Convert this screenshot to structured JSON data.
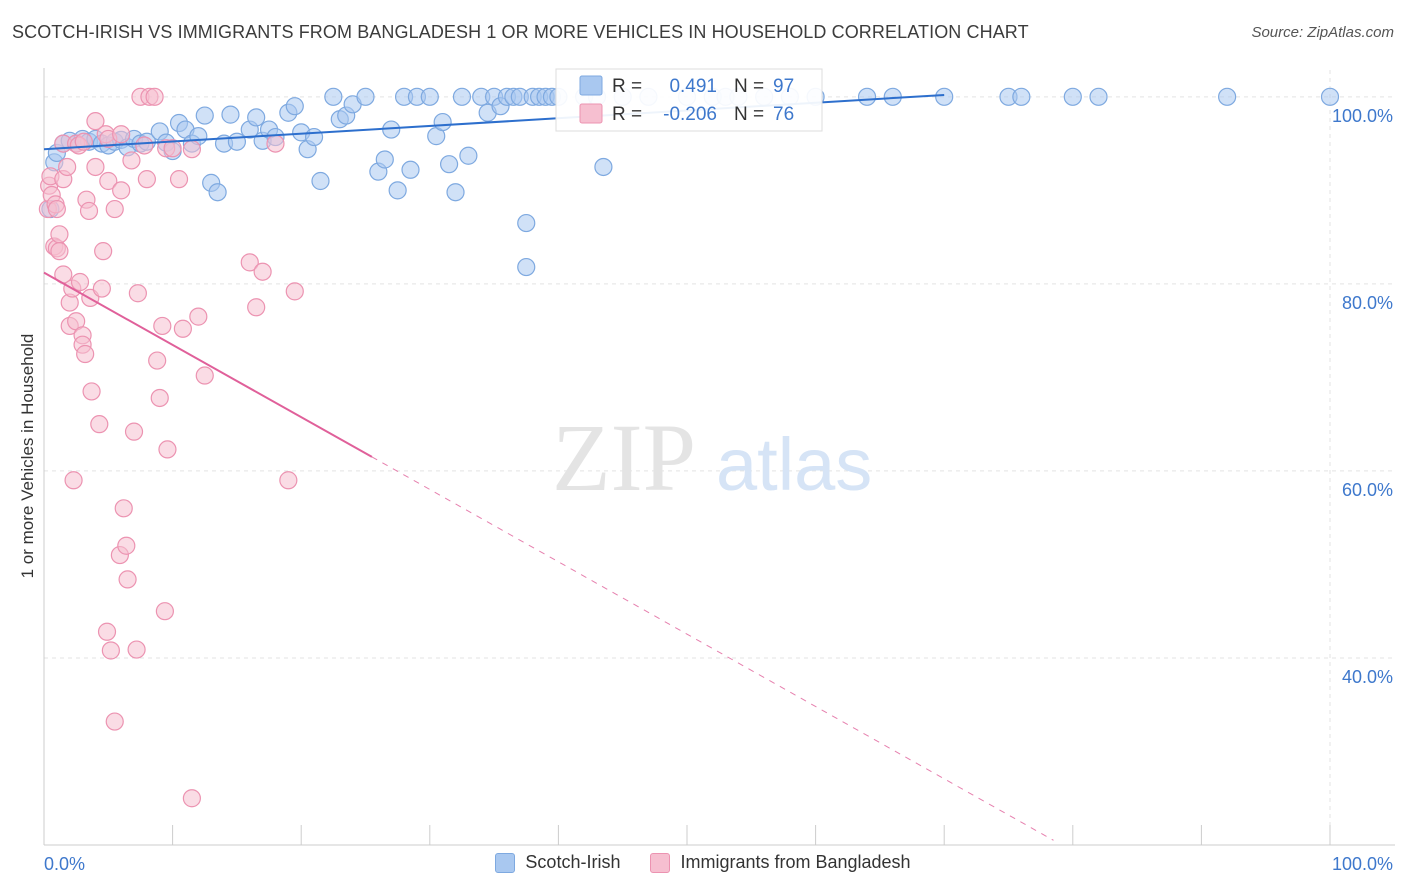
{
  "title": "SCOTCH-IRISH VS IMMIGRANTS FROM BANGLADESH 1 OR MORE VEHICLES IN HOUSEHOLD CORRELATION CHART",
  "source": "Source: ZipAtlas.com",
  "watermark": {
    "zip": "ZIP",
    "atlas": "atlas"
  },
  "colors": {
    "blue_fill": "#a9c8f0",
    "blue_stroke": "#7ea9e0",
    "blue_line": "#2d6fcd",
    "pink_fill": "#f6bfd0",
    "pink_stroke": "#ec93b1",
    "pink_line": "#e0609a",
    "grid": "#e3e3e3",
    "axis_text": "#3e78cc"
  },
  "legend_box": {
    "rows": [
      {
        "r_label": "R =",
        "r_value": "0.491",
        "n_label": "N =",
        "n_value": "97"
      },
      {
        "r_label": "R =",
        "r_value": "-0.206",
        "n_label": "N =",
        "n_value": "76"
      }
    ]
  },
  "legend_bottom": [
    "Scotch-Irish",
    "Immigrants from Bangladesh"
  ],
  "chart_data": {
    "type": "scatter",
    "title": "SCOTCH-IRISH VS IMMIGRANTS FROM BANGLADESH 1 OR MORE VEHICLES IN HOUSEHOLD CORRELATION CHART",
    "xlabel": "",
    "ylabel": "1 or more Vehicles in Household",
    "xlim": [
      0,
      100
    ],
    "ylim": [
      20,
      101.8
    ],
    "x_tick_labels": [
      {
        "value": 0,
        "label": "0.0%"
      },
      {
        "value": 100,
        "label": "100.0%"
      }
    ],
    "y_tick_labels": [
      {
        "value": 100,
        "label": "100.0%"
      },
      {
        "value": 80,
        "label": "80.0%"
      },
      {
        "value": 60,
        "label": "60.0%"
      },
      {
        "value": 40,
        "label": "40.0%"
      }
    ],
    "grid": true,
    "series": [
      {
        "name": "Scotch-Irish",
        "color": "blue",
        "R": 0.491,
        "N": 97,
        "trend": {
          "x0": 0,
          "y0": 94.4,
          "x1": 70,
          "y1": 100.2,
          "dashed_to": null
        },
        "points": [
          [
            0.5,
            88
          ],
          [
            0.8,
            93
          ],
          [
            1,
            94
          ],
          [
            1.5,
            95
          ],
          [
            2,
            95.3
          ],
          [
            2.5,
            95
          ],
          [
            3,
            95.5
          ],
          [
            3.5,
            95.2
          ],
          [
            4,
            95.5
          ],
          [
            4.5,
            95
          ],
          [
            5,
            94.8
          ],
          [
            5.5,
            95.2
          ],
          [
            6,
            95.4
          ],
          [
            6.5,
            94.6
          ],
          [
            7,
            95.5
          ],
          [
            7.5,
            95
          ],
          [
            8,
            95.2
          ],
          [
            9,
            96.3
          ],
          [
            9.5,
            95.1
          ],
          [
            10,
            94.2
          ],
          [
            10.5,
            97.2
          ],
          [
            11,
            96.5
          ],
          [
            11.5,
            95
          ],
          [
            12,
            95.8
          ],
          [
            12.5,
            98
          ],
          [
            13,
            90.8
          ],
          [
            13.5,
            89.8
          ],
          [
            14,
            95
          ],
          [
            14.5,
            98.1
          ],
          [
            15,
            95.2
          ],
          [
            16,
            96.5
          ],
          [
            16.5,
            97.8
          ],
          [
            17,
            95.3
          ],
          [
            17.5,
            96.5
          ],
          [
            18,
            95.7
          ],
          [
            19,
            98.3
          ],
          [
            19.5,
            99
          ],
          [
            20,
            96.2
          ],
          [
            20.5,
            94.4
          ],
          [
            21,
            95.7
          ],
          [
            21.5,
            91
          ],
          [
            22.5,
            100
          ],
          [
            23,
            97.6
          ],
          [
            23.5,
            98
          ],
          [
            24,
            99.2
          ],
          [
            25,
            100
          ],
          [
            26,
            92
          ],
          [
            26.5,
            93.3
          ],
          [
            27,
            96.5
          ],
          [
            27.5,
            90
          ],
          [
            28,
            100
          ],
          [
            28.5,
            92.2
          ],
          [
            29,
            100
          ],
          [
            30,
            100
          ],
          [
            30.5,
            95.8
          ],
          [
            31,
            97.3
          ],
          [
            31.5,
            92.8
          ],
          [
            32,
            89.8
          ],
          [
            32.5,
            100
          ],
          [
            33,
            93.7
          ],
          [
            34,
            100
          ],
          [
            34.5,
            98.3
          ],
          [
            35,
            100
          ],
          [
            35.5,
            99
          ],
          [
            36,
            100
          ],
          [
            36.5,
            100
          ],
          [
            37,
            100
          ],
          [
            37.5,
            86.5
          ],
          [
            37.5,
            81.8
          ],
          [
            38,
            100
          ],
          [
            38.5,
            100
          ],
          [
            39,
            100
          ],
          [
            39.5,
            100
          ],
          [
            40,
            100
          ],
          [
            42,
            100
          ],
          [
            43,
            100
          ],
          [
            43.5,
            92.5
          ],
          [
            45,
            100
          ],
          [
            47,
            100
          ],
          [
            50,
            100
          ],
          [
            52,
            100
          ],
          [
            53,
            100
          ],
          [
            54,
            100
          ],
          [
            56,
            100
          ],
          [
            58,
            100
          ],
          [
            60,
            100
          ],
          [
            64,
            100
          ],
          [
            66,
            100
          ],
          [
            70,
            100
          ],
          [
            75,
            100
          ],
          [
            76,
            100
          ],
          [
            80,
            100
          ],
          [
            82,
            100
          ],
          [
            92,
            100
          ],
          [
            100,
            100
          ]
        ]
      },
      {
        "name": "Immigrants from Bangladesh",
        "color": "pink",
        "R": -0.206,
        "N": 76,
        "trend": {
          "x0": 0,
          "y0": 81.2,
          "x1": 25.5,
          "y1": 61.5,
          "dashed_to": {
            "x": 78.5,
            "y": 20.5
          }
        },
        "points": [
          [
            0.3,
            88
          ],
          [
            0.4,
            90.5
          ],
          [
            0.5,
            91.5
          ],
          [
            0.6,
            89.5
          ],
          [
            0.8,
            84
          ],
          [
            0.9,
            88.5
          ],
          [
            1,
            83.8
          ],
          [
            1.2,
            85.3
          ],
          [
            1.5,
            91.2
          ],
          [
            1.8,
            92.5
          ],
          [
            1.2,
            83.5
          ],
          [
            1.5,
            81
          ],
          [
            2,
            78
          ],
          [
            2,
            75.5
          ],
          [
            2.2,
            79.5
          ],
          [
            2.3,
            59
          ],
          [
            2.5,
            76
          ],
          [
            2.8,
            80.2
          ],
          [
            3,
            74.5
          ],
          [
            3,
            73.5
          ],
          [
            3.2,
            72.5
          ],
          [
            3.3,
            89
          ],
          [
            3.5,
            87.8
          ],
          [
            3.6,
            78.5
          ],
          [
            3.7,
            68.5
          ],
          [
            4,
            92.5
          ],
          [
            4,
            97.4
          ],
          [
            4.3,
            65
          ],
          [
            4.5,
            79.5
          ],
          [
            4.6,
            83.5
          ],
          [
            4.8,
            96
          ],
          [
            4.9,
            42.8
          ],
          [
            5.2,
            40.8
          ],
          [
            5.5,
            33.2
          ],
          [
            5,
            95.5
          ],
          [
            5,
            91
          ],
          [
            5.5,
            88
          ],
          [
            5.9,
            51
          ],
          [
            6,
            96
          ],
          [
            6,
            90
          ],
          [
            6.2,
            56
          ],
          [
            6.4,
            52
          ],
          [
            6.5,
            48.4
          ],
          [
            6.8,
            93.2
          ],
          [
            7,
            64.2
          ],
          [
            7.2,
            40.9
          ],
          [
            7.3,
            79
          ],
          [
            7.5,
            100
          ],
          [
            7.8,
            94.8
          ],
          [
            8,
            91.2
          ],
          [
            8.2,
            100
          ],
          [
            8.6,
            100
          ],
          [
            8.8,
            71.8
          ],
          [
            9,
            67.8
          ],
          [
            9.2,
            75.5
          ],
          [
            9.4,
            45
          ],
          [
            9.5,
            94.5
          ],
          [
            9.6,
            62.3
          ],
          [
            10,
            94.5
          ],
          [
            10.5,
            91.2
          ],
          [
            10.8,
            75.2
          ],
          [
            11.5,
            94.4
          ],
          [
            11.5,
            25
          ],
          [
            12,
            76.5
          ],
          [
            12.5,
            70.2
          ],
          [
            16,
            82.3
          ],
          [
            16.5,
            77.5
          ],
          [
            17,
            81.3
          ],
          [
            18,
            95
          ],
          [
            19,
            59
          ],
          [
            19.5,
            79.2
          ],
          [
            1,
            88
          ],
          [
            1.5,
            95
          ],
          [
            2.5,
            95
          ],
          [
            2.7,
            94.8
          ],
          [
            3.1,
            95.2
          ]
        ]
      }
    ]
  }
}
